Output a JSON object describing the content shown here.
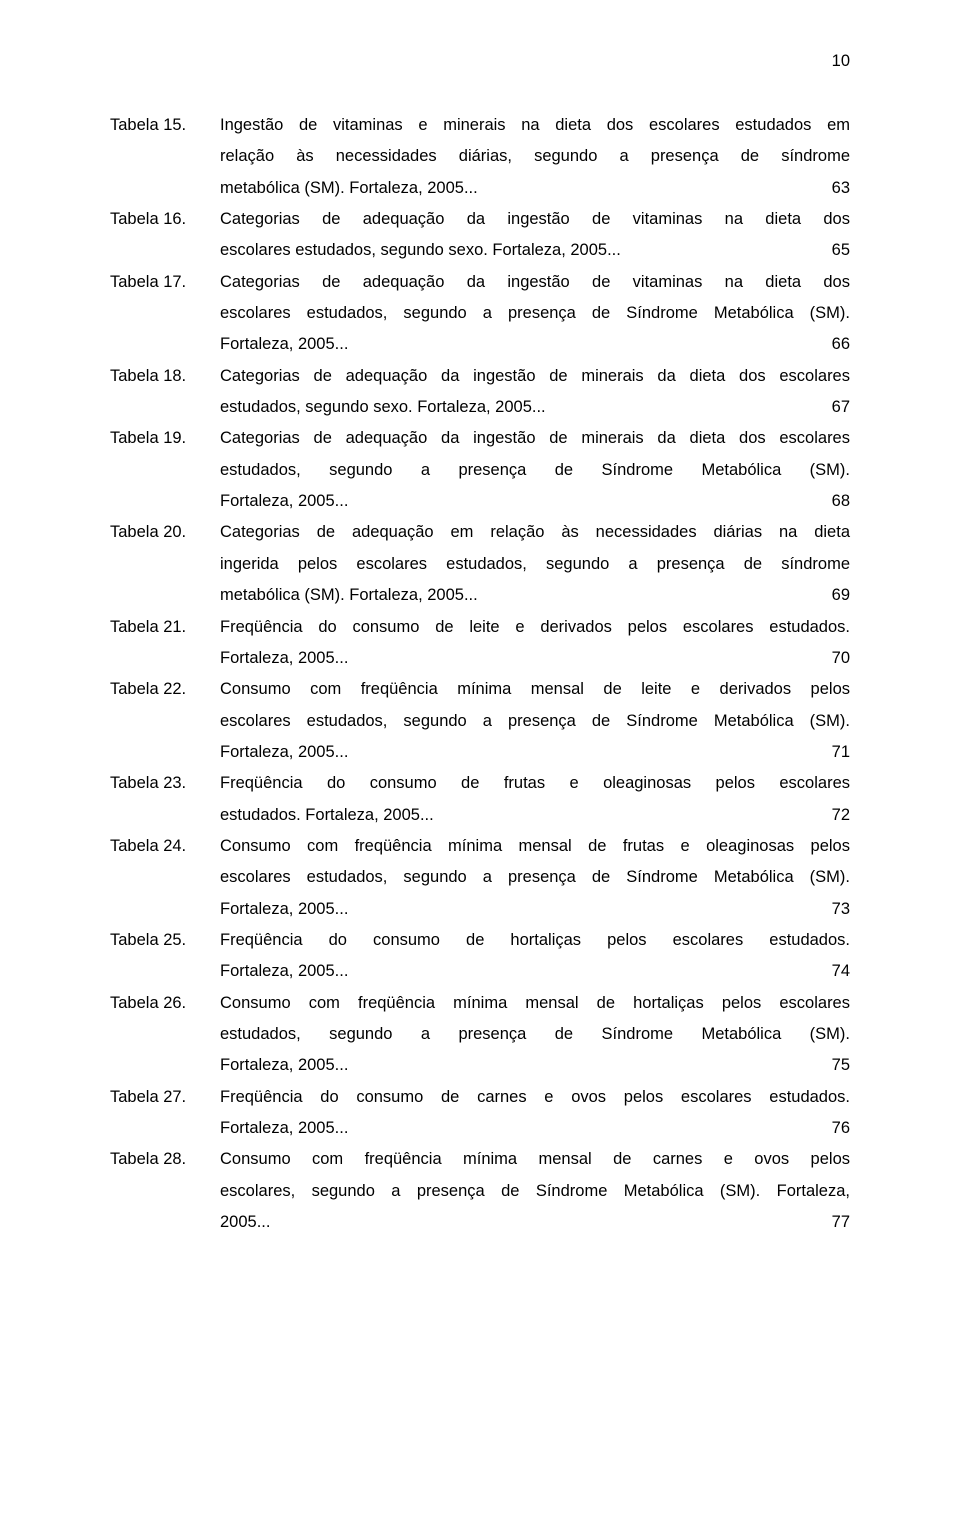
{
  "page_number": "10",
  "label_prefix": "Tabela",
  "entries": [
    {
      "n": "15.",
      "lines": [
        "Ingestão de vitaminas e minerais na dieta dos escolares estudados em",
        "relação às necessidades diárias, segundo a presença de síndrome"
      ],
      "last": "metabólica (SM). Fortaleza, 2005...",
      "page": "63"
    },
    {
      "n": "16.",
      "lines": [
        "Categorias de adequação da ingestão de vitaminas na dieta dos"
      ],
      "last": "escolares estudados, segundo sexo. Fortaleza, 2005...",
      "page": "65"
    },
    {
      "n": "17.",
      "lines": [
        "Categorias de adequação da ingestão de vitaminas na dieta dos",
        "escolares estudados, segundo a presença de Síndrome Metabólica (SM)."
      ],
      "last": "Fortaleza, 2005...",
      "page": "66"
    },
    {
      "n": "18.",
      "lines": [
        "Categorias de adequação da ingestão de minerais da dieta dos escolares"
      ],
      "last": "estudados, segundo sexo. Fortaleza, 2005...",
      "page": "67"
    },
    {
      "n": "19.",
      "lines": [
        "Categorias de adequação da ingestão de minerais da dieta dos escolares",
        "estudados, segundo a presença de Síndrome Metabólica (SM)."
      ],
      "last": "Fortaleza, 2005...",
      "page": "68"
    },
    {
      "n": "20.",
      "lines": [
        "Categorias de adequação em relação às necessidades diárias na dieta",
        "ingerida pelos escolares estudados, segundo a presença de síndrome"
      ],
      "last": "metabólica (SM). Fortaleza, 2005...",
      "page": "69"
    },
    {
      "n": "21.",
      "lines": [
        "Freqüência do consumo de leite e derivados pelos escolares estudados."
      ],
      "last": "Fortaleza, 2005...",
      "page": "70"
    },
    {
      "n": "22.",
      "lines": [
        "Consumo com freqüência mínima mensal de leite e derivados pelos",
        "escolares estudados, segundo a presença de Síndrome Metabólica (SM)."
      ],
      "last": "Fortaleza, 2005...",
      "page": "71"
    },
    {
      "n": "23.",
      "lines": [
        "Freqüência do consumo de frutas e oleaginosas pelos escolares"
      ],
      "last": "estudados. Fortaleza, 2005...",
      "page": "72"
    },
    {
      "n": "24.",
      "lines": [
        "Consumo com freqüência mínima mensal de frutas e oleaginosas pelos",
        "escolares estudados, segundo a presença de Síndrome Metabólica (SM)."
      ],
      "last": "Fortaleza, 2005...",
      "page": "73"
    },
    {
      "n": "25.",
      "lines": [
        "Freqüência do consumo de hortaliças pelos escolares estudados."
      ],
      "last": "Fortaleza, 2005...",
      "page": "74"
    },
    {
      "n": "26.",
      "lines": [
        "Consumo com freqüência mínima mensal de hortaliças pelos escolares",
        "estudados, segundo a presença de Síndrome Metabólica (SM)."
      ],
      "last": "Fortaleza, 2005...",
      "page": "75"
    },
    {
      "n": "27.",
      "lines": [
        "Freqüência do consumo de carnes e ovos pelos escolares estudados."
      ],
      "last": "Fortaleza, 2005...",
      "page": "76"
    },
    {
      "n": "28.",
      "lines": [
        "Consumo com freqüência mínima mensal de carnes e ovos pelos",
        "escolares, segundo a presença de Síndrome Metabólica (SM). Fortaleza,"
      ],
      "last": "2005...",
      "page": "77"
    }
  ]
}
